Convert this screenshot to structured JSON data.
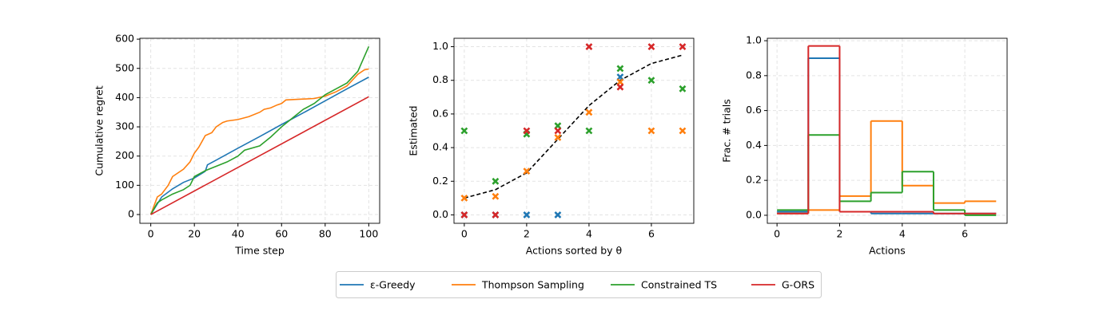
{
  "chart_data": [
    {
      "type": "line",
      "xlabel": "Time step",
      "ylabel": "Cumulative regret",
      "xlim": [
        -5,
        105
      ],
      "ylim": [
        -30,
        603
      ],
      "xticks": [
        0,
        20,
        40,
        60,
        80,
        100
      ],
      "yticks": [
        0,
        100,
        200,
        300,
        400,
        500,
        600
      ],
      "grid": true,
      "legend": "bottom",
      "series": [
        {
          "name": "ε-Greedy",
          "color": "#1f77b4",
          "x": [
            0,
            5,
            10,
            15,
            20,
            25,
            26,
            30,
            40,
            50,
            60,
            70,
            80,
            90,
            100
          ],
          "values": [
            0,
            60,
            88,
            110,
            125,
            148,
            170,
            186,
            227,
            267,
            308,
            348,
            389,
            430,
            470
          ]
        },
        {
          "name": "Thompson Sampling",
          "color": "#ff7f0e",
          "x": [
            0,
            3,
            5,
            8,
            10,
            15,
            18,
            20,
            22,
            25,
            28,
            30,
            33,
            35,
            40,
            45,
            50,
            52,
            55,
            58,
            60,
            62,
            70,
            75,
            80,
            85,
            90,
            95,
            98,
            100
          ],
          "values": [
            0,
            60,
            70,
            100,
            130,
            155,
            180,
            210,
            230,
            270,
            280,
            300,
            315,
            320,
            325,
            335,
            350,
            360,
            365,
            375,
            380,
            392,
            395,
            397,
            405,
            420,
            440,
            480,
            495,
            498
          ]
        },
        {
          "name": "Constrained TS",
          "color": "#2ca02c",
          "x": [
            0,
            3,
            5,
            10,
            15,
            18,
            20,
            25,
            30,
            35,
            40,
            43,
            50,
            55,
            60,
            65,
            70,
            75,
            80,
            85,
            90,
            95,
            100
          ],
          "values": [
            0,
            40,
            50,
            70,
            85,
            100,
            130,
            150,
            165,
            180,
            200,
            220,
            235,
            265,
            300,
            330,
            360,
            380,
            410,
            430,
            450,
            490,
            575
          ]
        },
        {
          "name": "G-ORS",
          "color": "#d62728",
          "x": [
            0,
            2,
            100
          ],
          "values": [
            0,
            8,
            403
          ]
        }
      ]
    },
    {
      "type": "scatter",
      "xlabel": "Actions sorted by θ",
      "ylabel": "Estimated",
      "xlim": [
        -0.33,
        7.36
      ],
      "ylim": [
        -0.05,
        1.05
      ],
      "xticks": [
        0,
        2,
        4,
        6
      ],
      "yticks": [
        {
          "value": 0,
          "label": "0.0"
        },
        {
          "value": 0.2,
          "label": "0.2"
        },
        {
          "value": 0.4,
          "label": "0.4"
        },
        {
          "value": 0.6,
          "label": "0.6"
        },
        {
          "value": 0.8,
          "label": "0.8"
        },
        {
          "value": 1,
          "label": "1.0"
        }
      ],
      "grid": true,
      "reference_line": {
        "color": "#000000",
        "x": [
          0,
          1,
          2,
          3,
          4,
          5,
          6,
          7
        ],
        "values": [
          0.1,
          0.15,
          0.25,
          0.45,
          0.65,
          0.8,
          0.9,
          0.95
        ]
      },
      "series": [
        {
          "name": "ε-Greedy",
          "color": "#1f77b4",
          "x": [
            0,
            1,
            2,
            3,
            5
          ],
          "values": [
            0,
            0,
            0,
            0,
            0.82
          ]
        },
        {
          "name": "Thompson Sampling",
          "color": "#ff7f0e",
          "x": [
            0,
            1,
            2,
            3,
            4,
            5,
            6,
            7
          ],
          "values": [
            0.1,
            0.11,
            0.26,
            0.46,
            0.61,
            0.79,
            0.5,
            0.5
          ]
        },
        {
          "name": "Constrained TS",
          "color": "#2ca02c",
          "x": [
            0,
            1,
            2,
            3,
            4,
            5,
            6,
            7
          ],
          "values": [
            0.5,
            0.2,
            0.48,
            0.53,
            0.5,
            0.87,
            0.8,
            0.75
          ]
        },
        {
          "name": "G-ORS",
          "color": "#d62728",
          "x": [
            0,
            1,
            2,
            3,
            4,
            5,
            6,
            7
          ],
          "values": [
            0,
            0,
            0.5,
            0.5,
            1,
            0.76,
            1,
            1
          ]
        }
      ]
    },
    {
      "type": "histogram",
      "xlabel": "Actions",
      "ylabel": "Frac. # trials",
      "xlim": [
        -0.31,
        7.35
      ],
      "ylim": [
        -0.046,
        1.014
      ],
      "xticks": [
        0,
        2,
        4,
        6
      ],
      "yticks": [
        {
          "value": 0,
          "label": "0.0"
        },
        {
          "value": 0.2,
          "label": "0.2"
        },
        {
          "value": 0.4,
          "label": "0.4"
        },
        {
          "value": 0.6,
          "label": "0.6"
        },
        {
          "value": 0.8,
          "label": "0.8"
        },
        {
          "value": 1,
          "label": "1.0"
        }
      ],
      "grid": true,
      "bins": [
        0,
        1,
        2,
        3,
        4,
        5,
        6,
        7
      ],
      "series": [
        {
          "name": "ε-Greedy",
          "color": "#1f77b4",
          "values": [
            0.02,
            0.9,
            0.02,
            0.01,
            0.01,
            0.01,
            0.01
          ]
        },
        {
          "name": "Thompson Sampling",
          "color": "#ff7f0e",
          "values": [
            0.01,
            0.03,
            0.11,
            0.54,
            0.17,
            0.07,
            0.08
          ]
        },
        {
          "name": "Constrained TS",
          "color": "#2ca02c",
          "values": [
            0.03,
            0.46,
            0.08,
            0.13,
            0.25,
            0.03,
            0
          ]
        },
        {
          "name": "G-ORS",
          "color": "#d62728",
          "values": [
            0.01,
            0.97,
            0.02,
            0.02,
            0.02,
            0.01,
            0.01
          ]
        }
      ]
    }
  ]
}
